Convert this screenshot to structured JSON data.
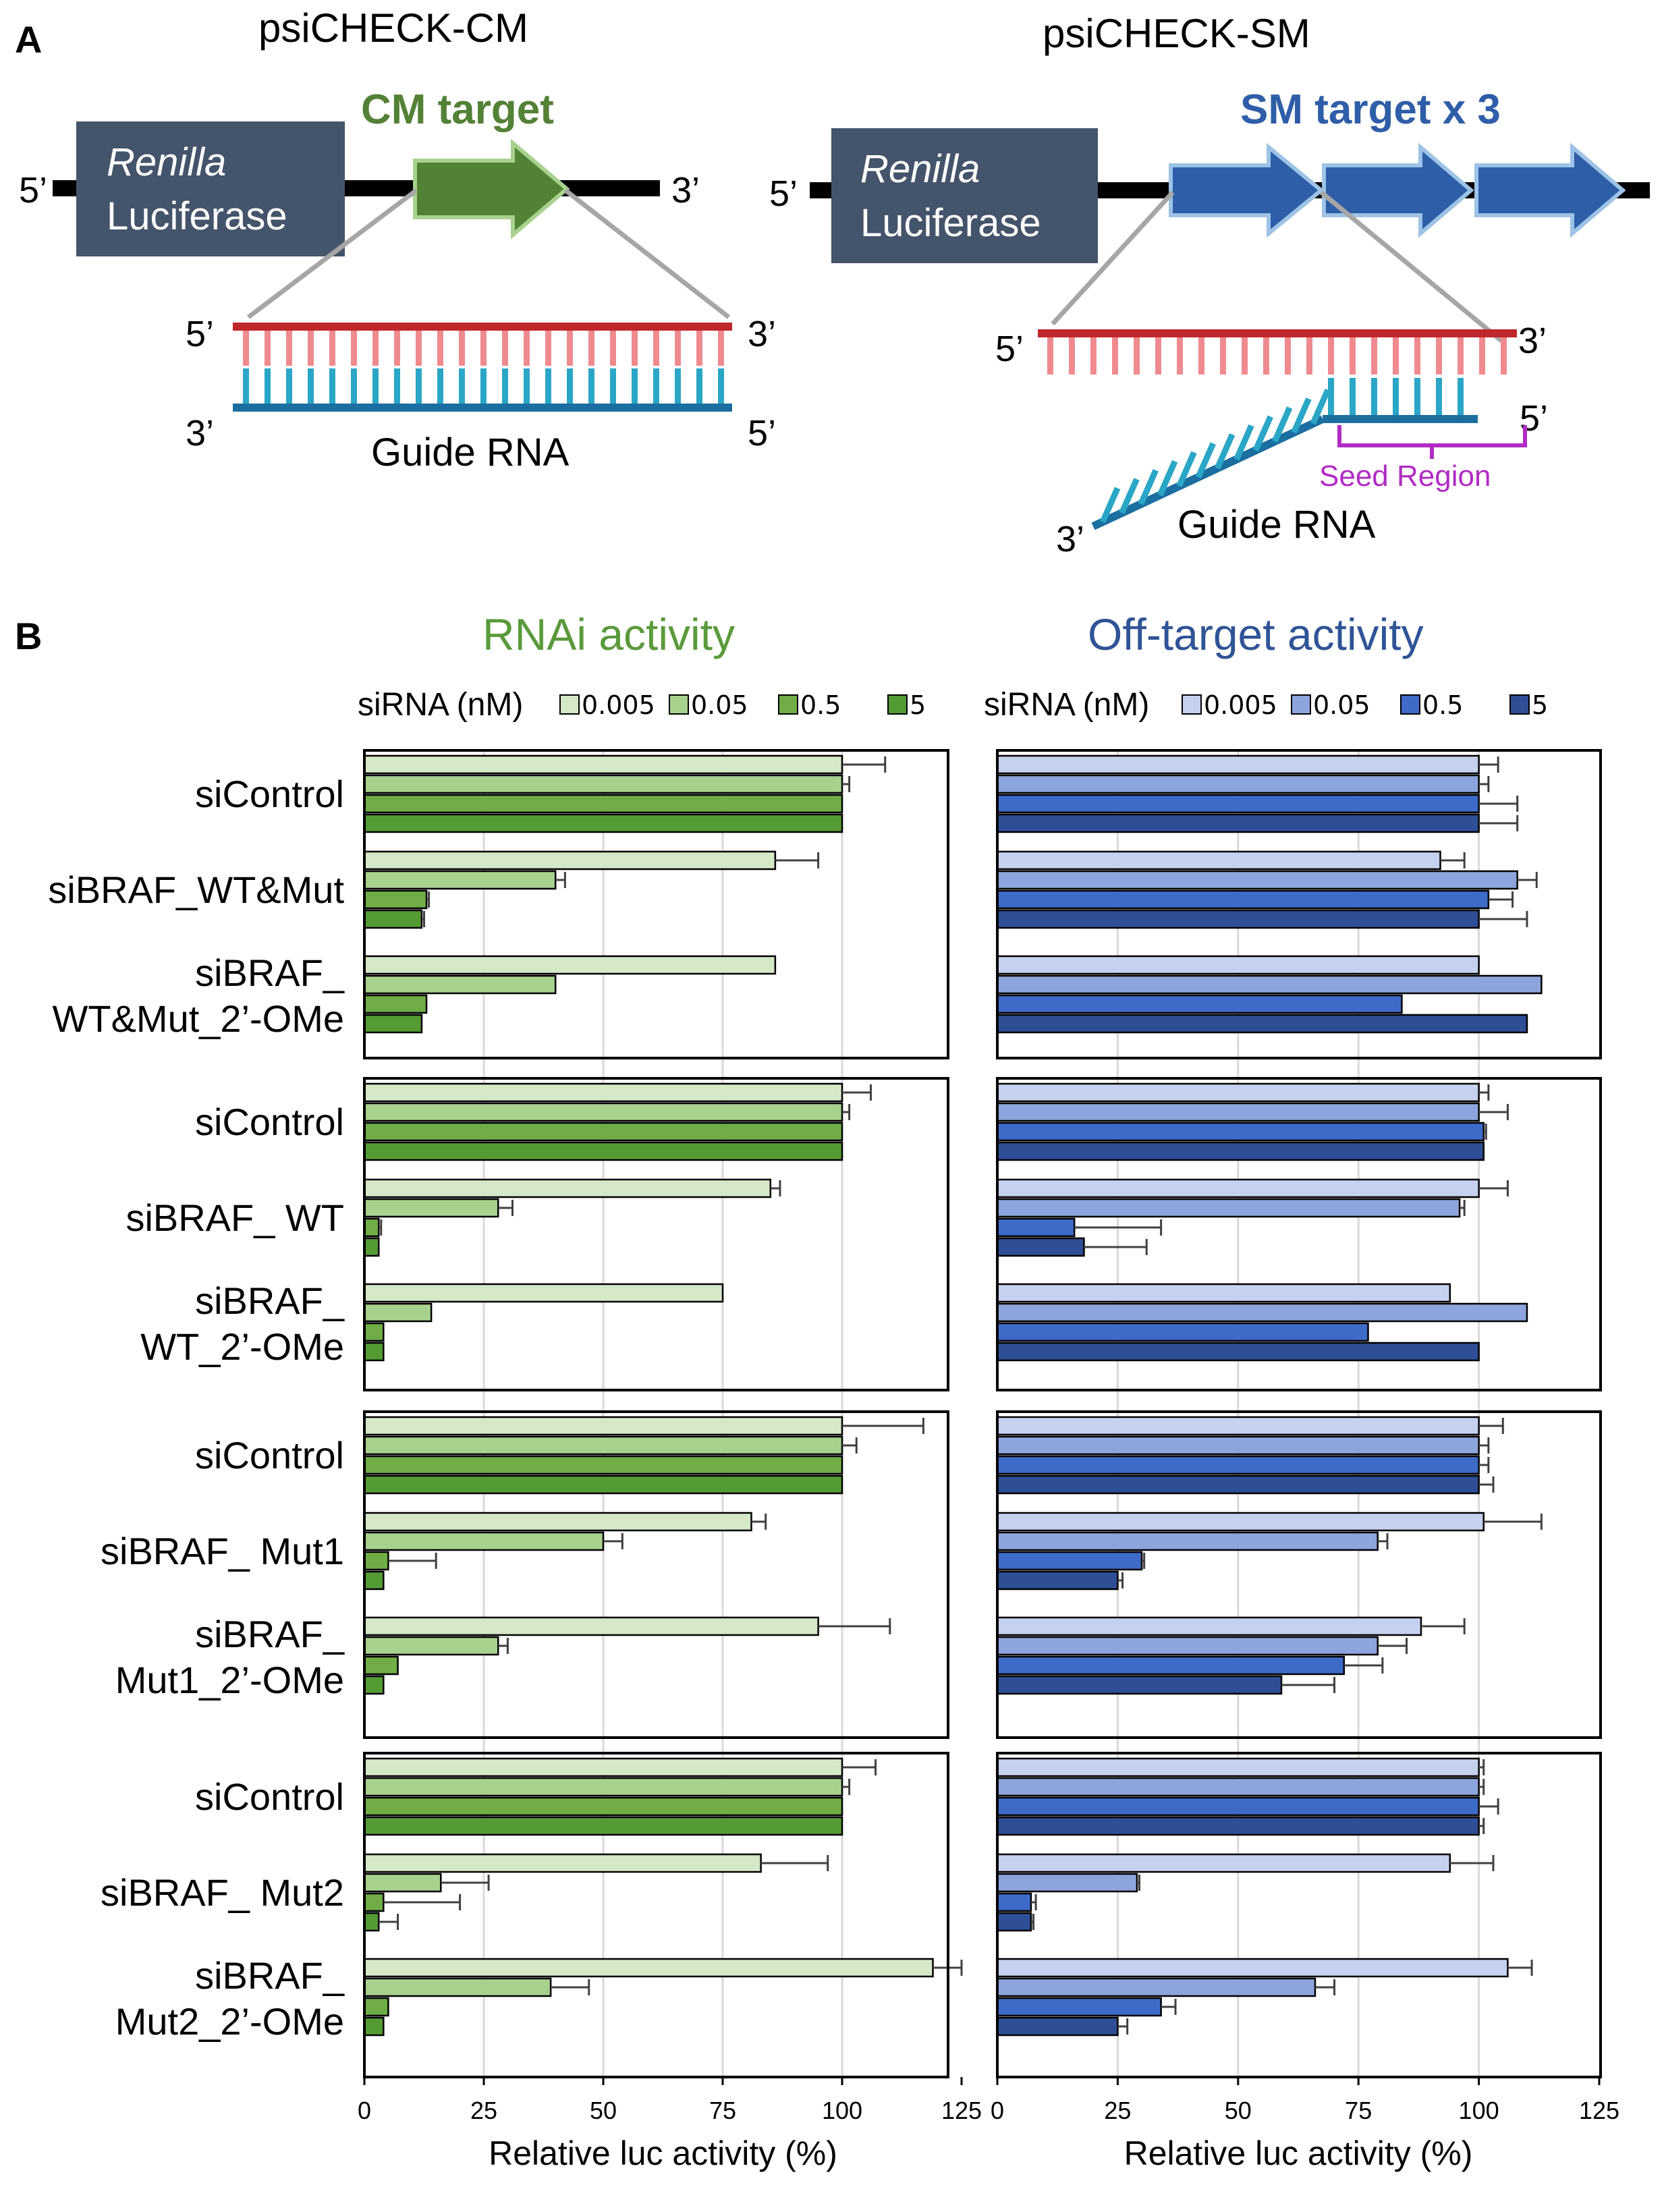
{
  "panel_a": {
    "letter": "A",
    "cm": {
      "title": "psiCHECK-CM",
      "luc_italic": "Renilla",
      "luc_label": "Luciferase",
      "target_label": "CM target",
      "end_5": "5’",
      "end_3": "3’",
      "guide_label": "Guide RNA"
    },
    "sm": {
      "title": "psiCHECK-SM",
      "luc_italic": "Renilla",
      "luc_label": "Luciferase",
      "target_label": "SM target x 3",
      "end_5": "5’",
      "end_3": "3’",
      "seed_label": "Seed Region",
      "guide_label": "Guide RNA"
    },
    "colors": {
      "green_arrow": "#538135",
      "blue_arrow": "#2f5ea8",
      "luc_box": "#44546a",
      "target_strand": "#c0272d",
      "target_teeth": "#ef8a8f",
      "guide_strand": "#1a6ea0",
      "guide_teeth": "#2aa6c6",
      "seed": "#b02cc4"
    }
  },
  "panel_b_letter": "B",
  "chart_data": [
    {
      "type": "bar",
      "orientation": "horizontal",
      "title": "RNAi activity",
      "xlabel": "Relative luc activity (%)",
      "xlim": [
        0,
        125
      ],
      "xticks": [
        "0",
        "25",
        "50",
        "75",
        "100",
        "125"
      ],
      "grid": true,
      "legend": {
        "title": "siRNA (nM)",
        "placement": "top",
        "entries": [
          "0.005",
          "0.05",
          "0.5",
          "5"
        ],
        "colors": [
          "#d5e8c8",
          "#a9d18e",
          "#70ad47",
          "#549b34"
        ]
      },
      "groups": [
        {
          "rows": [
            {
              "label": [
                "siControl"
              ],
              "values": [
                100,
                100,
                100,
                100
              ],
              "errors": [
                9,
                1.5,
                0,
                0
              ]
            },
            {
              "label": [
                "siBRAF_WT&Mut"
              ],
              "values": [
                86,
                40,
                13,
                12
              ],
              "errors": [
                9,
                2,
                0.5,
                0.5
              ]
            },
            {
              "label": [
                "siBRAF_",
                "WT&Mut_2’-OMe"
              ],
              "values": [
                86,
                40,
                13,
                12
              ],
              "errors": [
                0,
                0,
                0,
                0
              ]
            }
          ]
        },
        {
          "rows": [
            {
              "label": [
                "siControl"
              ],
              "values": [
                100,
                100,
                100,
                100
              ],
              "errors": [
                6,
                1.5,
                0,
                0
              ]
            },
            {
              "label": [
                "siBRAF_ WT"
              ],
              "values": [
                85,
                28,
                3,
                3
              ],
              "errors": [
                2,
                3,
                0.5,
                0
              ]
            },
            {
              "label": [
                "siBRAF_",
                "WT_2’-OMe"
              ],
              "values": [
                75,
                14,
                4,
                4
              ],
              "errors": [
                0,
                0,
                0,
                0
              ]
            }
          ]
        },
        {
          "rows": [
            {
              "label": [
                "siControl"
              ],
              "values": [
                100,
                100,
                100,
                100
              ],
              "errors": [
                17,
                3,
                0,
                0
              ]
            },
            {
              "label": [
                "siBRAF_ Mut1"
              ],
              "values": [
                81,
                50,
                5,
                4
              ],
              "errors": [
                3,
                4,
                10,
                0
              ]
            },
            {
              "label": [
                "siBRAF_",
                "Mut1_2’-OMe"
              ],
              "values": [
                95,
                28,
                7,
                4
              ],
              "errors": [
                15,
                2,
                0,
                0
              ]
            }
          ]
        },
        {
          "rows": [
            {
              "label": [
                "siControl"
              ],
              "values": [
                100,
                100,
                100,
                100
              ],
              "errors": [
                7,
                1.5,
                0,
                0
              ]
            },
            {
              "label": [
                "siBRAF_ Mut2"
              ],
              "values": [
                83,
                16,
                4,
                3
              ],
              "errors": [
                14,
                10,
                16,
                4
              ]
            },
            {
              "label": [
                "siBRAF_",
                "Mut2_2’-OMe"
              ],
              "values": [
                119,
                39,
                5,
                4
              ],
              "errors": [
                6,
                8,
                0,
                0
              ]
            }
          ]
        }
      ]
    },
    {
      "type": "bar",
      "orientation": "horizontal",
      "title": "Off-target activity",
      "xlabel": "Relative luc activity (%)",
      "xlim": [
        0,
        125
      ],
      "xticks": [
        "0",
        "25",
        "50",
        "75",
        "100",
        "125"
      ],
      "grid": true,
      "legend": {
        "title": "siRNA (nM)",
        "placement": "top",
        "entries": [
          "0.005",
          "0.05",
          "0.5",
          "5"
        ],
        "colors": [
          "#c5d1ee",
          "#8ea4dc",
          "#3e6bc8",
          "#2e4f96"
        ]
      },
      "groups": [
        {
          "rows": [
            {
              "values": [
                100,
                100,
                100,
                100
              ],
              "errors": [
                4,
                2,
                8,
                8
              ]
            },
            {
              "values": [
                92,
                108,
                102,
                100
              ],
              "errors": [
                5,
                4,
                5,
                10
              ]
            },
            {
              "values": [
                100,
                113,
                84,
                110
              ],
              "errors": [
                0,
                0,
                0,
                0
              ]
            }
          ]
        },
        {
          "rows": [
            {
              "values": [
                100,
                100,
                101,
                101
              ],
              "errors": [
                2,
                6,
                0.5,
                0
              ]
            },
            {
              "values": [
                100,
                96,
                16,
                18
              ],
              "errors": [
                6,
                1,
                18,
                13
              ]
            },
            {
              "values": [
                94,
                110,
                77,
                100
              ],
              "errors": [
                0,
                0,
                0,
                0
              ]
            }
          ]
        },
        {
          "rows": [
            {
              "values": [
                100,
                100,
                100,
                100
              ],
              "errors": [
                5,
                2,
                2,
                3
              ]
            },
            {
              "values": [
                101,
                79,
                30,
                25
              ],
              "errors": [
                12,
                2,
                0.5,
                1
              ]
            },
            {
              "values": [
                88,
                79,
                72,
                59
              ],
              "errors": [
                9,
                6,
                8,
                11
              ]
            }
          ]
        },
        {
          "rows": [
            {
              "values": [
                100,
                100,
                100,
                100
              ],
              "errors": [
                1,
                1,
                4,
                1
              ]
            },
            {
              "values": [
                94,
                29,
                7,
                7
              ],
              "errors": [
                9,
                0.5,
                1,
                0.5
              ]
            },
            {
              "values": [
                106,
                66,
                34,
                25
              ],
              "errors": [
                5,
                4,
                3,
                2
              ]
            }
          ]
        }
      ]
    }
  ]
}
